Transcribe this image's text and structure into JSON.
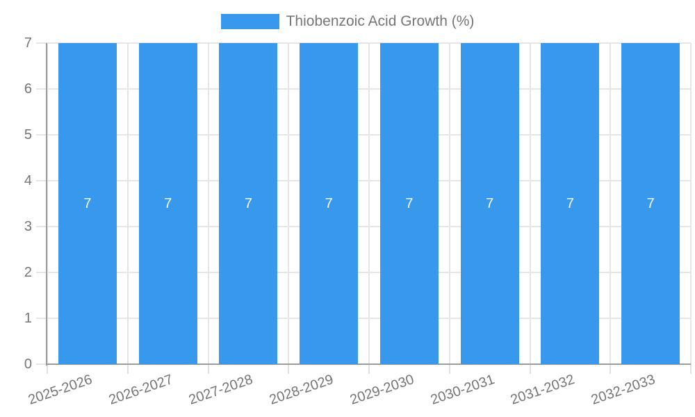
{
  "legend": {
    "label": "Thiobenzoic Acid Growth (%)"
  },
  "chart_data": {
    "type": "bar",
    "title": "",
    "xlabel": "",
    "ylabel": "",
    "legend_position": "top",
    "legend_entries": [
      "Thiobenzoic Acid Growth (%)"
    ],
    "categories": [
      "2025-2026",
      "2026-2027",
      "2027-2028",
      "2028-2029",
      "2029-2030",
      "2030-2031",
      "2031-2032",
      "2032-2033"
    ],
    "series": [
      {
        "name": "Thiobenzoic Acid Growth (%)",
        "values": [
          7,
          7,
          7,
          7,
          7,
          7,
          7,
          7
        ]
      }
    ],
    "bar_value_labels": [
      "7",
      "7",
      "7",
      "7",
      "7",
      "7",
      "7",
      "7"
    ],
    "ylim": [
      0,
      7
    ],
    "yticks": [
      0,
      1,
      2,
      3,
      4,
      5,
      6,
      7
    ],
    "grid": true,
    "value_labels_inside_bars": true,
    "x_labels_rotated": true
  },
  "colors": {
    "bar": "#3898ec",
    "grid": "#e5e5e5",
    "axis": "#9b9b9b",
    "tick_text": "#757575",
    "value_label_text": "#ffffff",
    "background": "#ffffff"
  }
}
